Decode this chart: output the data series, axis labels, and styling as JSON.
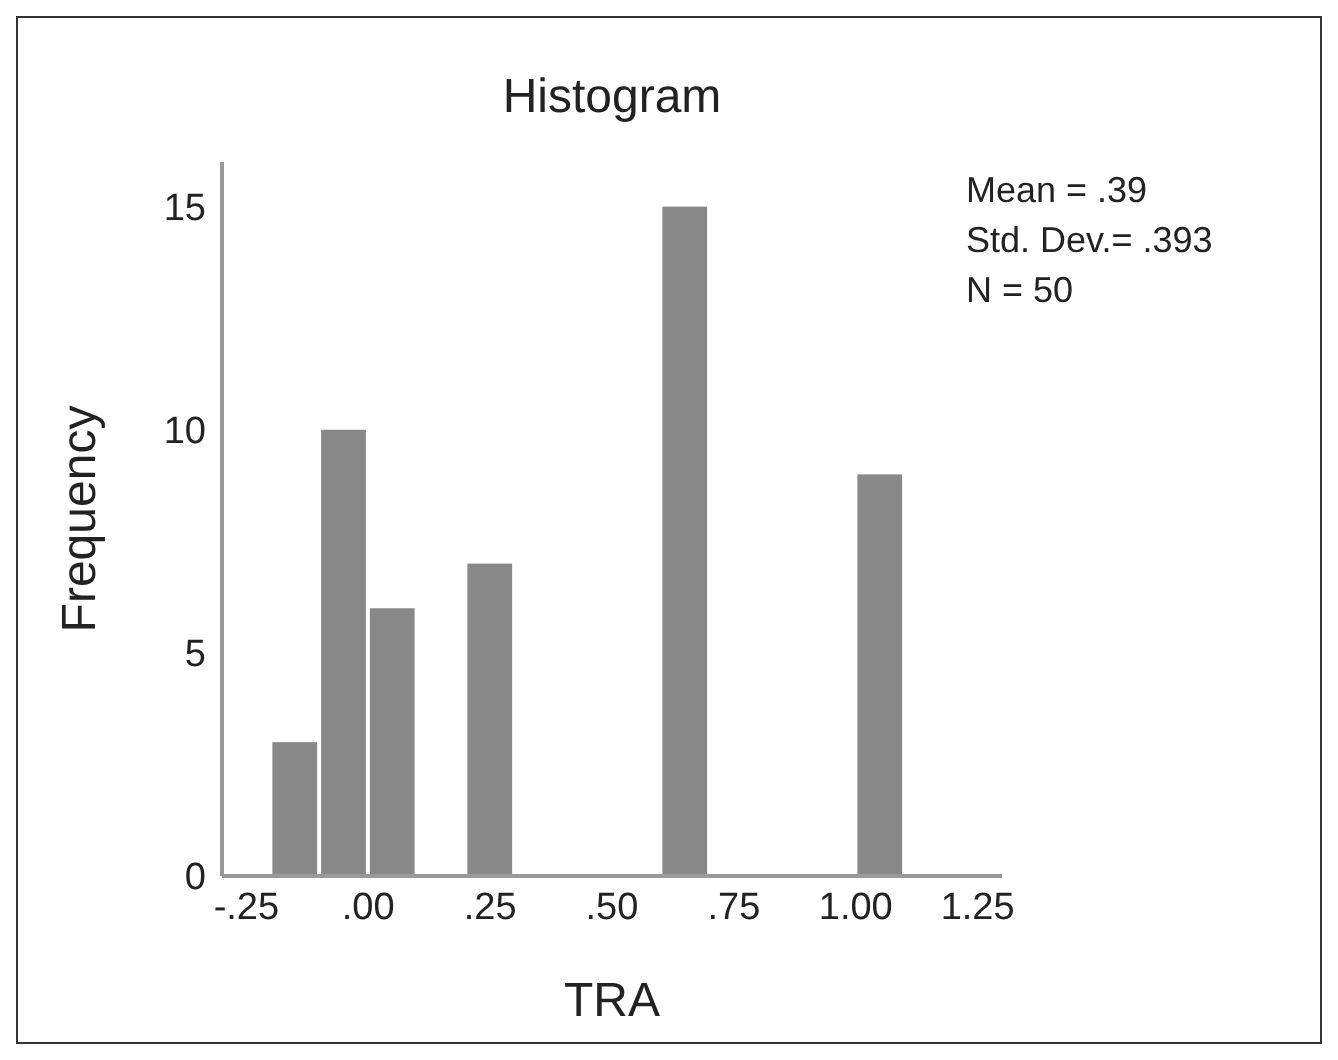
{
  "chart_data": {
    "type": "histogram",
    "title": "Histogram",
    "xlabel": "TRA",
    "ylabel": "Frequency",
    "bins": [
      -0.2,
      -0.1,
      0,
      0.1,
      0.2,
      0.3,
      0.4,
      0.5,
      0.6,
      0.7,
      0.8,
      0.9,
      1.0,
      1.1
    ],
    "values": [
      3,
      10,
      6,
      0,
      7,
      0,
      0,
      0,
      15,
      0,
      0,
      0,
      9
    ],
    "color": "#888888",
    "xlim": [
      -0.3,
      1.3
    ],
    "xticks": [
      {
        "value": -0.25,
        "label": "-.25"
      },
      {
        "value": 0,
        "label": ".00"
      },
      {
        "value": 0.25,
        "label": ".25"
      },
      {
        "value": 0.5,
        "label": ".50"
      },
      {
        "value": 0.75,
        "label": ".75"
      },
      {
        "value": 1,
        "label": "1.00"
      },
      {
        "value": 1.25,
        "label": "1.25"
      }
    ],
    "ylim": [
      0,
      16
    ],
    "yticks": [
      0,
      5,
      10,
      15
    ],
    "grid": false,
    "legend": false,
    "annotations": [
      "Mean = .39",
      "Std. Dev.= .393",
      "N = 50"
    ]
  }
}
